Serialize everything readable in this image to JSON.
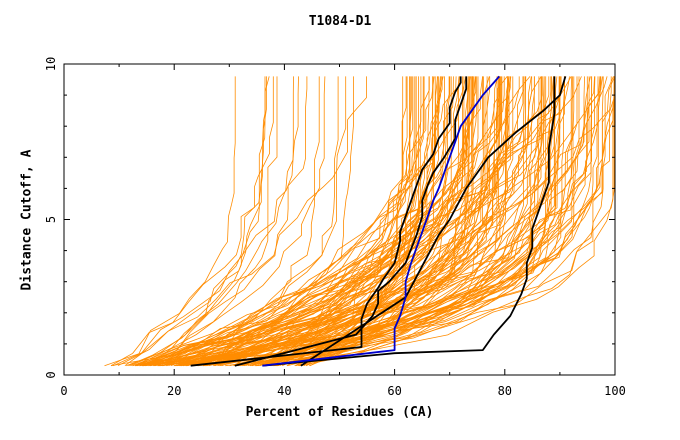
{
  "chart_data": {
    "type": "line",
    "title": "T1084-D1",
    "xlabel": "Percent of Residues (CA)",
    "ylabel": "Distance Cutoff, A",
    "xlim": [
      0,
      100
    ],
    "ylim": [
      0,
      10
    ],
    "xticks": [
      "0",
      "20",
      "40",
      "60",
      "80",
      "100"
    ],
    "yticks": [
      "0",
      "5",
      "10"
    ],
    "colors": {
      "background_models": "#ff8c00",
      "highlighted_models": "#000000",
      "selected_model": "#0000cc"
    },
    "background_models": {
      "count": 160,
      "description": "Many orange cumulative curves, start points ranging 7%-45% at 0.3 A, reaching 30%-100% at 9.6 A"
    },
    "series": [
      {
        "name": "black-1",
        "color": "#000000",
        "x": [
          23,
          54,
          54,
          55,
          57,
          58,
          60,
          61,
          61,
          62,
          63,
          64,
          65,
          67,
          68,
          70,
          70,
          71,
          72,
          72
        ],
        "y": [
          0.3,
          0.9,
          1.8,
          2.3,
          2.8,
          3.1,
          3.6,
          4.3,
          4.6,
          5.1,
          5.6,
          6.1,
          6.6,
          7.1,
          7.6,
          8.1,
          8.6,
          9.1,
          9.4,
          9.6
        ]
      },
      {
        "name": "black-2",
        "color": "#000000",
        "x": [
          31,
          53,
          56,
          57,
          57,
          59,
          62,
          64,
          65,
          65,
          66,
          67,
          69,
          71,
          71,
          72,
          73,
          73
        ],
        "y": [
          0.3,
          1.3,
          1.9,
          2.3,
          2.7,
          3.0,
          3.6,
          4.5,
          5.1,
          5.6,
          6.1,
          6.5,
          7.0,
          7.6,
          8.2,
          8.7,
          9.2,
          9.6
        ]
      },
      {
        "name": "black-3",
        "color": "#000000",
        "x": [
          36,
          60,
          76,
          78,
          81,
          83,
          84,
          84,
          85,
          85,
          88,
          88,
          89,
          89
        ],
        "y": [
          0.3,
          0.7,
          0.8,
          1.3,
          1.9,
          2.6,
          3.1,
          3.6,
          4.1,
          4.7,
          6.2,
          7.3,
          8.4,
          9.6
        ]
      },
      {
        "name": "black-4",
        "color": "#000000",
        "x": [
          43,
          62,
          65,
          68,
          70,
          73,
          77,
          82,
          87,
          90,
          91
        ],
        "y": [
          0.3,
          2.5,
          3.5,
          4.5,
          5.0,
          6.0,
          7.0,
          7.8,
          8.5,
          9.0,
          9.6
        ]
      },
      {
        "name": "blue",
        "color": "#0000cc",
        "x": [
          36,
          60,
          60,
          61,
          62,
          62,
          63,
          64,
          65,
          66,
          67,
          68,
          69,
          70,
          71,
          72,
          74,
          76,
          79
        ],
        "y": [
          0.3,
          0.8,
          1.5,
          1.9,
          2.5,
          3.0,
          3.6,
          4.1,
          4.6,
          5.1,
          5.6,
          6.0,
          6.5,
          7.0,
          7.5,
          8.0,
          8.5,
          9.0,
          9.6
        ]
      }
    ]
  }
}
